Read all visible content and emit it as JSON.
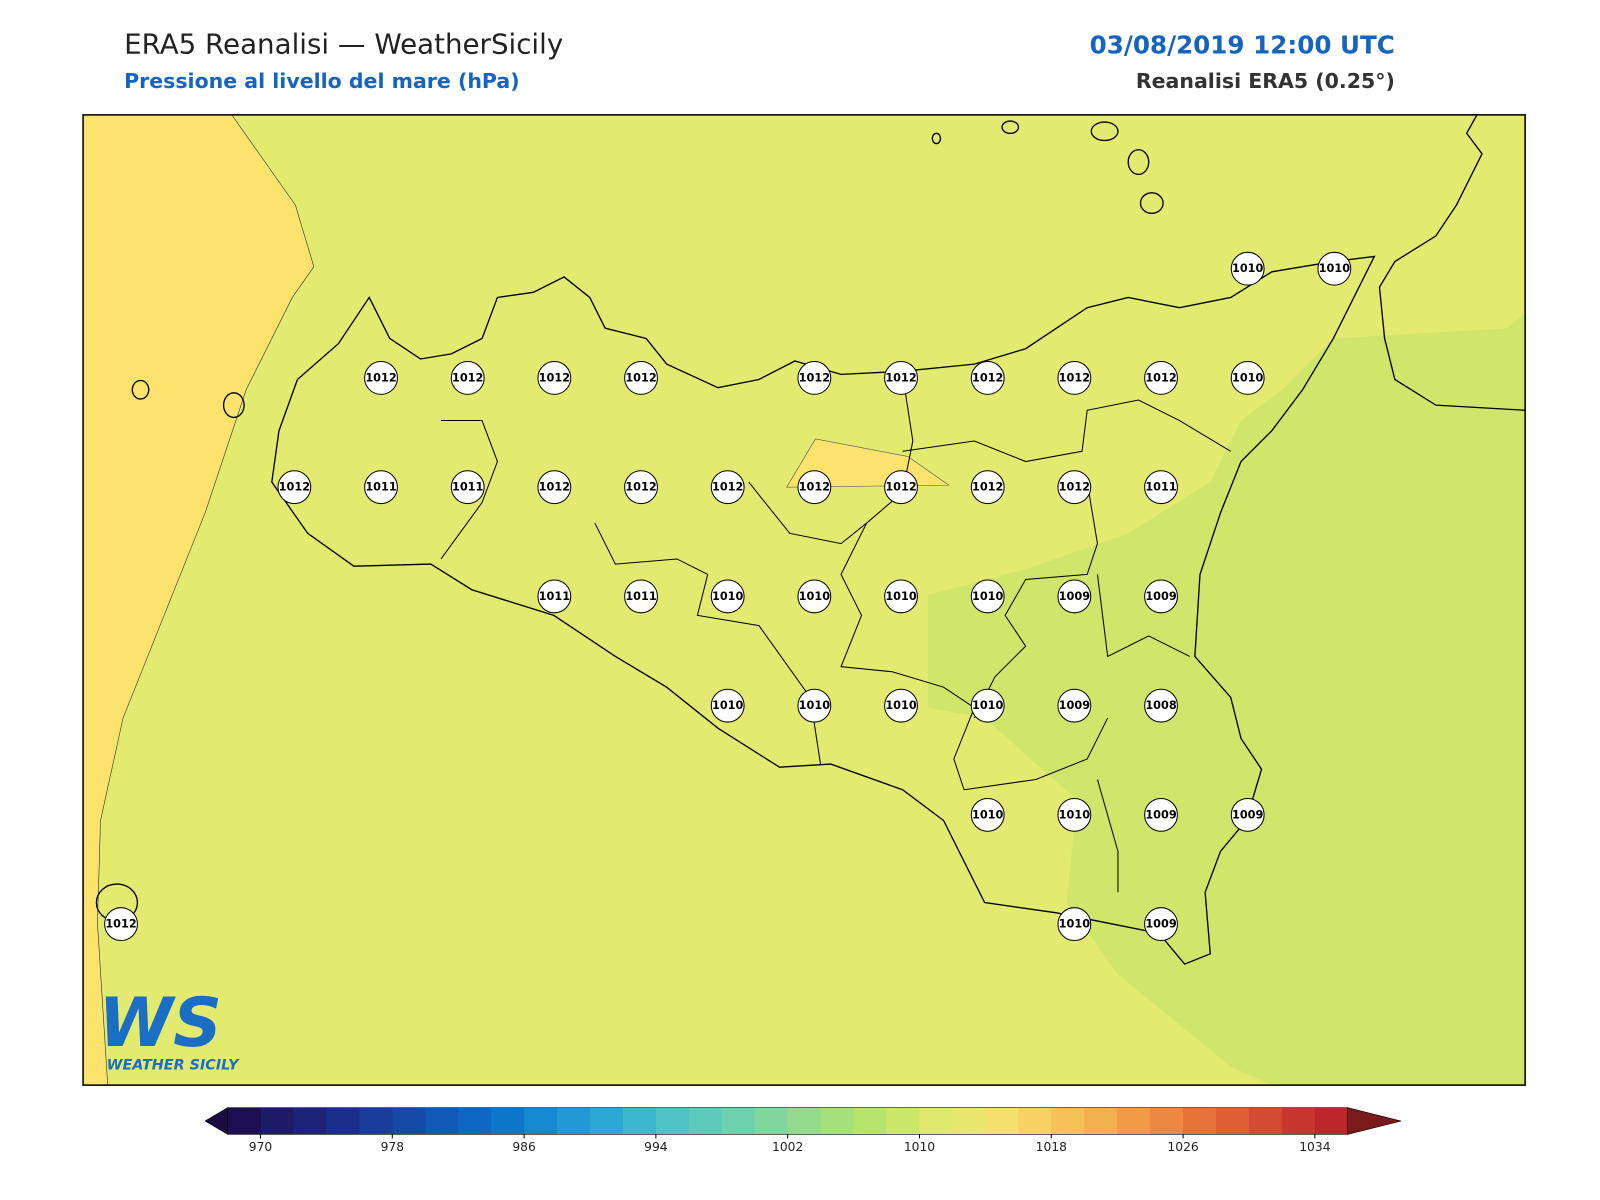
{
  "header": {
    "title": "ERA5 Reanalisi — WeatherSicily",
    "subtitle": "Pressione al livello del mare (hPa)",
    "datetime": "03/08/2019 12:00 UTC",
    "source": "Reanalisi ERA5 (0.25°)"
  },
  "stations": [
    1010,
    1010,
    1012,
    1012,
    1012,
    1012,
    1012,
    1012,
    1012,
    1012,
    1012,
    1010,
    1012,
    1011,
    1011,
    1012,
    1012,
    1012,
    1012,
    1012,
    1012,
    1012,
    1011,
    1011,
    1011,
    1010,
    1010,
    1010,
    1010,
    1009,
    1009,
    1010,
    1010,
    1010,
    1010,
    1009,
    1008,
    1010,
    1010,
    1009,
    1009,
    1012,
    1010,
    1009
  ],
  "colorbar": {
    "ticks": [
      970,
      978,
      986,
      994,
      1002,
      1010,
      1018,
      1026,
      1034
    ],
    "colors": [
      "#1c0f52",
      "#1d1a66",
      "#1d2478",
      "#1b2f8a",
      "#193d99",
      "#164aa8",
      "#1258b6",
      "#0e67c2",
      "#0d78cb",
      "#1489cf",
      "#2199d2",
      "#2ca9d3",
      "#3cb8ce",
      "#4ec3c6",
      "#5fcabb",
      "#6fd0ad",
      "#80d69d",
      "#92db8c",
      "#a5e07b",
      "#b8e46d",
      "#cbe768",
      "#dbea6c",
      "#e9e76e",
      "#f5e06c",
      "#f8d261",
      "#f6c257",
      "#f3b04e",
      "#f09c46",
      "#ec883f",
      "#e7733a",
      "#df5e36",
      "#d54a33",
      "#c93630",
      "#bd272c"
    ],
    "under_color": "#1a0b45",
    "over_color": "#7a1a1a"
  },
  "logo": {
    "mark": "WS",
    "name": "WEATHER SICILY"
  }
}
